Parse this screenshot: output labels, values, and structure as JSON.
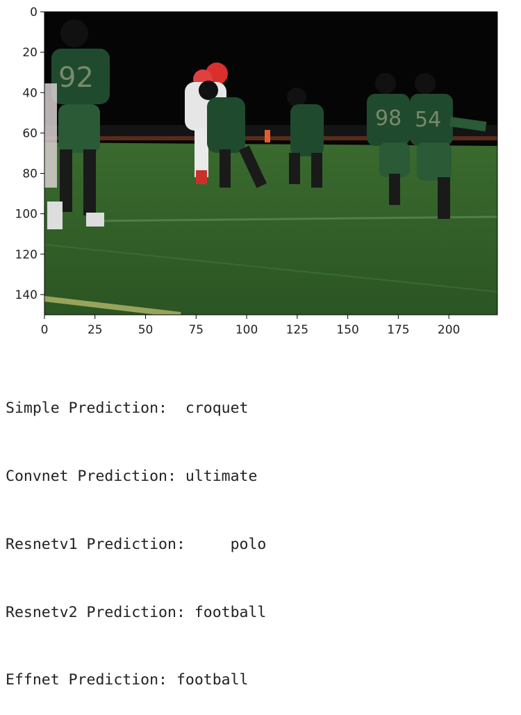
{
  "figure": {
    "type": "image-axes",
    "x_ticks": [
      "0",
      "25",
      "50",
      "75",
      "100",
      "125",
      "150",
      "175",
      "200"
    ],
    "y_ticks": [
      "0",
      "20",
      "40",
      "60",
      "80",
      "100",
      "120",
      "140"
    ],
    "xlim": [
      0,
      224
    ],
    "ylim": [
      150,
      0
    ],
    "image_content": "night-football-game-photo",
    "colors": {
      "field": "#2e5a26",
      "sky": "#050505",
      "jersey_green": "#1e4a2c",
      "jersey_white": "#e8e8e8",
      "helmet_red": "#c9302c",
      "axis": "#000000"
    }
  },
  "output_lines": [
    "Simple Prediction:  croquet",
    "Convnet Prediction: ultimate",
    "Resnetv1 Prediction:     polo",
    "Resnetv2 Prediction: football",
    "Effnet Prediction: football"
  ]
}
